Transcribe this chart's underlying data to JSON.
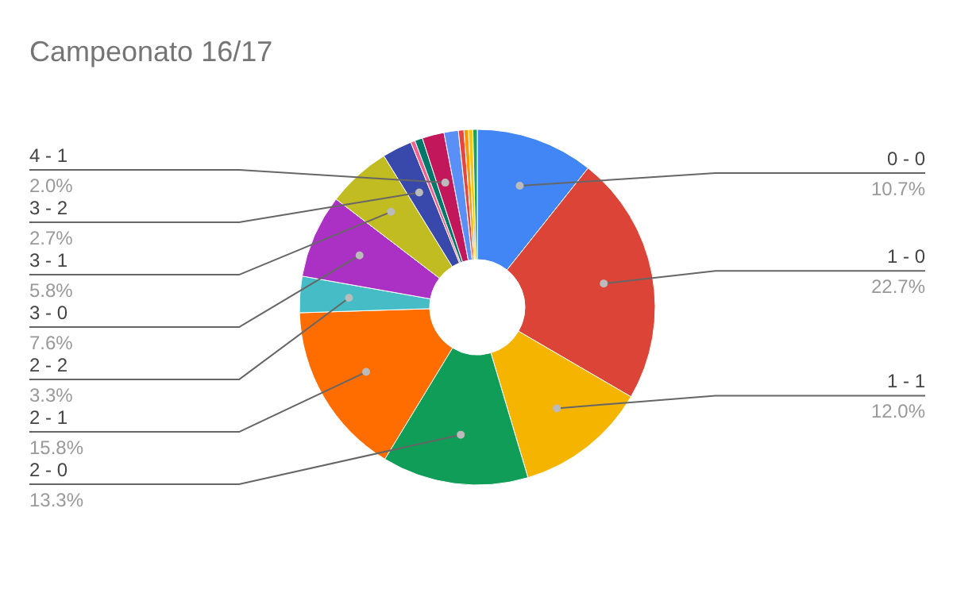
{
  "chart_data": {
    "type": "donut",
    "title": "Campeonato 16/17",
    "categories": [
      "0 - 0",
      "1 - 0",
      "1 - 1",
      "2 - 0",
      "2 - 1",
      "2 - 2",
      "3 - 0",
      "3 - 1",
      "3 - 2",
      null,
      null,
      "4 - 1",
      null,
      null,
      null,
      null,
      null
    ],
    "values": [
      10.7,
      22.7,
      12.0,
      13.3,
      15.8,
      3.3,
      7.6,
      5.8,
      2.7,
      0.4,
      0.7,
      2.0,
      1.3,
      0.5,
      0.4,
      0.4,
      0.4
    ],
    "colors": [
      "#4285f4",
      "#db4437",
      "#f4b400",
      "#0f9d58",
      "#ff6d00",
      "#46bdc6",
      "#ab30c4",
      "#c2bc23",
      "#3949ab",
      "#f06292",
      "#00796b",
      "#c2185b",
      "#5a8ff5",
      "#e8453c",
      "#ff9800",
      "#f9c80e",
      "#1aa260"
    ],
    "value_labels": [
      "10.7%",
      "22.7%",
      "12.0%",
      "13.3%",
      "15.8%",
      "3.3%",
      "7.6%",
      "5.8%",
      "2.7%",
      null,
      null,
      "2.0%",
      null,
      null,
      null,
      null,
      null
    ]
  }
}
